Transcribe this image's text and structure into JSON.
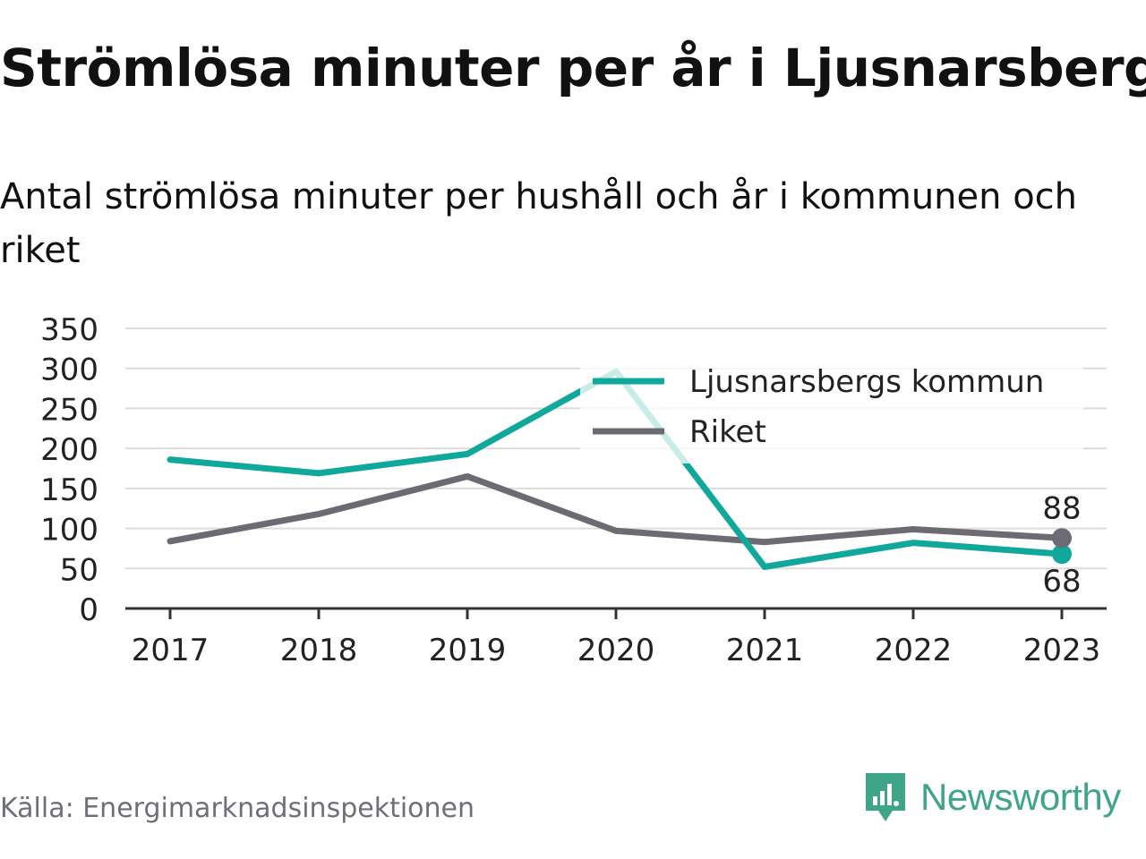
{
  "title": "Strömlösa minuter per år i Ljusnarsberg",
  "subtitle": "Antal strömlösa minuter per hushåll och år i kommunen och riket",
  "source": "Källa: Energimarknadsinspektionen",
  "brand": {
    "name": "Newsworthy",
    "logo_icon": "newsworthy-logo-icon"
  },
  "colors": {
    "municipality": "#10a89a",
    "national": "#6c6b74",
    "brand": "#3fa588",
    "grid": "#dcdcdc"
  },
  "chart_data": {
    "type": "line",
    "x": [
      "2017",
      "2018",
      "2019",
      "2020",
      "2021",
      "2022",
      "2023"
    ],
    "yticks": [
      0,
      50,
      100,
      150,
      200,
      250,
      300,
      350
    ],
    "ylim": [
      0,
      350
    ],
    "grid": true,
    "legend_position": "top-right",
    "series": [
      {
        "name": "Ljusnarsbergs kommun",
        "values": [
          186,
          169,
          193,
          296,
          52,
          82,
          68
        ],
        "end_label": "68"
      },
      {
        "name": "Riket",
        "values": [
          84,
          118,
          165,
          97,
          83,
          99,
          88
        ],
        "end_label": "88"
      }
    ]
  }
}
